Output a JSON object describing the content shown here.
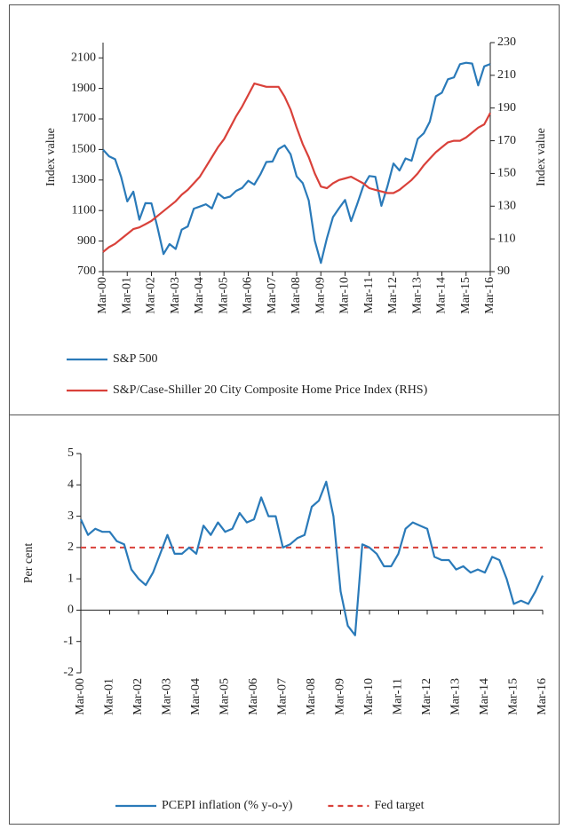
{
  "chart_data": [
    {
      "type": "line",
      "y_label": "Index value",
      "y2_label": "Index value",
      "x": [
        2000.17,
        2000.42,
        2000.67,
        2000.92,
        2001.17,
        2001.42,
        2001.67,
        2001.92,
        2002.17,
        2002.42,
        2002.67,
        2002.92,
        2003.17,
        2003.42,
        2003.67,
        2003.92,
        2004.17,
        2004.42,
        2004.67,
        2004.92,
        2005.17,
        2005.42,
        2005.67,
        2005.92,
        2006.17,
        2006.42,
        2006.67,
        2006.92,
        2007.17,
        2007.42,
        2007.67,
        2007.92,
        2008.17,
        2008.42,
        2008.67,
        2008.92,
        2009.17,
        2009.42,
        2009.67,
        2009.92,
        2010.17,
        2010.42,
        2010.67,
        2010.92,
        2011.17,
        2011.42,
        2011.67,
        2011.92,
        2012.17,
        2012.42,
        2012.67,
        2012.92,
        2013.17,
        2013.42,
        2013.67,
        2013.92,
        2014.17,
        2014.42,
        2014.67,
        2014.92,
        2015.17,
        2015.42,
        2015.67,
        2015.92,
        2016.17
      ],
      "xlim": [
        2000.17,
        2016.17
      ],
      "xticks": [
        {
          "value": 2000.17,
          "label": "Mar-00"
        },
        {
          "value": 2001.17,
          "label": "Mar-01"
        },
        {
          "value": 2002.17,
          "label": "Mar-02"
        },
        {
          "value": 2003.17,
          "label": "Mar-03"
        },
        {
          "value": 2004.17,
          "label": "Mar-04"
        },
        {
          "value": 2005.17,
          "label": "Mar-05"
        },
        {
          "value": 2006.17,
          "label": "Mar-06"
        },
        {
          "value": 2007.17,
          "label": "Mar-07"
        },
        {
          "value": 2008.17,
          "label": "Mar-08"
        },
        {
          "value": 2009.17,
          "label": "Mar-09"
        },
        {
          "value": 2010.17,
          "label": "Mar-10"
        },
        {
          "value": 2011.17,
          "label": "Mar-11"
        },
        {
          "value": 2012.17,
          "label": "Mar-12"
        },
        {
          "value": 2013.17,
          "label": "Mar-13"
        },
        {
          "value": 2014.17,
          "label": "Mar-14"
        },
        {
          "value": 2015.17,
          "label": "Mar-15"
        },
        {
          "value": 2016.17,
          "label": "Mar-16"
        }
      ],
      "ylim": [
        700,
        2200
      ],
      "yticks": [
        700,
        900,
        1100,
        1300,
        1500,
        1700,
        1900,
        2100
      ],
      "y2lim": [
        90,
        230
      ],
      "y2ticks": [
        90,
        110,
        130,
        150,
        170,
        190,
        210,
        230
      ],
      "series": [
        {
          "name": "S&P 500",
          "color": "#2a7ab9",
          "values": [
            1499,
            1455,
            1436,
            1320,
            1160,
            1224,
            1040,
            1148,
            1147,
            990,
            815,
            880,
            848,
            975,
            996,
            1112,
            1126,
            1141,
            1114,
            1212,
            1181,
            1191,
            1229,
            1248,
            1295,
            1270,
            1336,
            1418,
            1421,
            1503,
            1527,
            1468,
            1323,
            1280,
            1166,
            903,
            757,
            919,
            1057,
            1115,
            1169,
            1031,
            1141,
            1258,
            1326,
            1321,
            1131,
            1258,
            1408,
            1362,
            1441,
            1426,
            1569,
            1606,
            1682,
            1848,
            1872,
            1960,
            1972,
            2059,
            2068,
            2063,
            1920,
            2044,
            2060
          ]
        },
        {
          "name": "S&P/Case-Shiller 20 City Composite Home Price Index (RHS)",
          "color": "#d9413a",
          "axis": "y2",
          "values": [
            102,
            105,
            107,
            110,
            113,
            116,
            117,
            119,
            121,
            124,
            127,
            130,
            133,
            137,
            140,
            144,
            148,
            154,
            160,
            166,
            171,
            178,
            185,
            191,
            198,
            205,
            204,
            203,
            203,
            203,
            197,
            189,
            178,
            168,
            160,
            150,
            142,
            141,
            144,
            146,
            147,
            148,
            146,
            144,
            141,
            140,
            139,
            138,
            138,
            140,
            143,
            146,
            150,
            155,
            159,
            163,
            166,
            169,
            170,
            170,
            172,
            175,
            178,
            180,
            187
          ]
        }
      ]
    },
    {
      "type": "line",
      "y_label": "Per cent",
      "x": [
        2000.17,
        2000.42,
        2000.67,
        2000.92,
        2001.17,
        2001.42,
        2001.67,
        2001.92,
        2002.17,
        2002.42,
        2002.67,
        2002.92,
        2003.17,
        2003.42,
        2003.67,
        2003.92,
        2004.17,
        2004.42,
        2004.67,
        2004.92,
        2005.17,
        2005.42,
        2005.67,
        2005.92,
        2006.17,
        2006.42,
        2006.67,
        2006.92,
        2007.17,
        2007.42,
        2007.67,
        2007.92,
        2008.17,
        2008.42,
        2008.67,
        2008.92,
        2009.17,
        2009.42,
        2009.67,
        2009.92,
        2010.17,
        2010.42,
        2010.67,
        2010.92,
        2011.17,
        2011.42,
        2011.67,
        2011.92,
        2012.17,
        2012.42,
        2012.67,
        2012.92,
        2013.17,
        2013.42,
        2013.67,
        2013.92,
        2014.17,
        2014.42,
        2014.67,
        2014.92,
        2015.17,
        2015.42,
        2015.67,
        2015.92,
        2016.17
      ],
      "xlim": [
        2000.17,
        2016.17
      ],
      "xticks": [
        {
          "value": 2000.17,
          "label": "Mar-00"
        },
        {
          "value": 2001.17,
          "label": "Mar-01"
        },
        {
          "value": 2002.17,
          "label": "Mar-02"
        },
        {
          "value": 2003.17,
          "label": "Mar-03"
        },
        {
          "value": 2004.17,
          "label": "Mar-04"
        },
        {
          "value": 2005.17,
          "label": "Mar-05"
        },
        {
          "value": 2006.17,
          "label": "Mar-06"
        },
        {
          "value": 2007.17,
          "label": "Mar-07"
        },
        {
          "value": 2008.17,
          "label": "Mar-08"
        },
        {
          "value": 2009.17,
          "label": "Mar-09"
        },
        {
          "value": 2010.17,
          "label": "Mar-10"
        },
        {
          "value": 2011.17,
          "label": "Mar-11"
        },
        {
          "value": 2012.17,
          "label": "Mar-12"
        },
        {
          "value": 2013.17,
          "label": "Mar-13"
        },
        {
          "value": 2014.17,
          "label": "Mar-14"
        },
        {
          "value": 2015.17,
          "label": "Mar-15"
        },
        {
          "value": 2016.17,
          "label": "Mar-16"
        }
      ],
      "ylim": [
        -2,
        5
      ],
      "yticks": [
        -2,
        -1,
        0,
        1,
        2,
        3,
        4,
        5
      ],
      "series": [
        {
          "name": "PCEPI inflation (% y-o-y)",
          "color": "#2a7ab9",
          "values": [
            2.9,
            2.4,
            2.6,
            2.5,
            2.5,
            2.2,
            2.1,
            1.3,
            1.0,
            0.8,
            1.2,
            1.8,
            2.4,
            1.8,
            1.8,
            2.0,
            1.8,
            2.7,
            2.4,
            2.8,
            2.5,
            2.6,
            3.1,
            2.8,
            2.9,
            3.6,
            3.0,
            3.0,
            2.0,
            2.1,
            2.3,
            2.4,
            3.3,
            3.5,
            4.1,
            3.0,
            0.6,
            -0.5,
            -0.8,
            2.1,
            2.0,
            1.8,
            1.4,
            1.4,
            1.8,
            2.6,
            2.8,
            2.7,
            2.6,
            1.7,
            1.6,
            1.6,
            1.3,
            1.4,
            1.2,
            1.3,
            1.2,
            1.7,
            1.6,
            1.0,
            0.2,
            0.3,
            0.2,
            0.6,
            1.1
          ]
        }
      ],
      "reference_lines": [
        {
          "name": "Fed target",
          "value": 2,
          "color": "#d9413a",
          "dashed": true
        }
      ]
    }
  ]
}
